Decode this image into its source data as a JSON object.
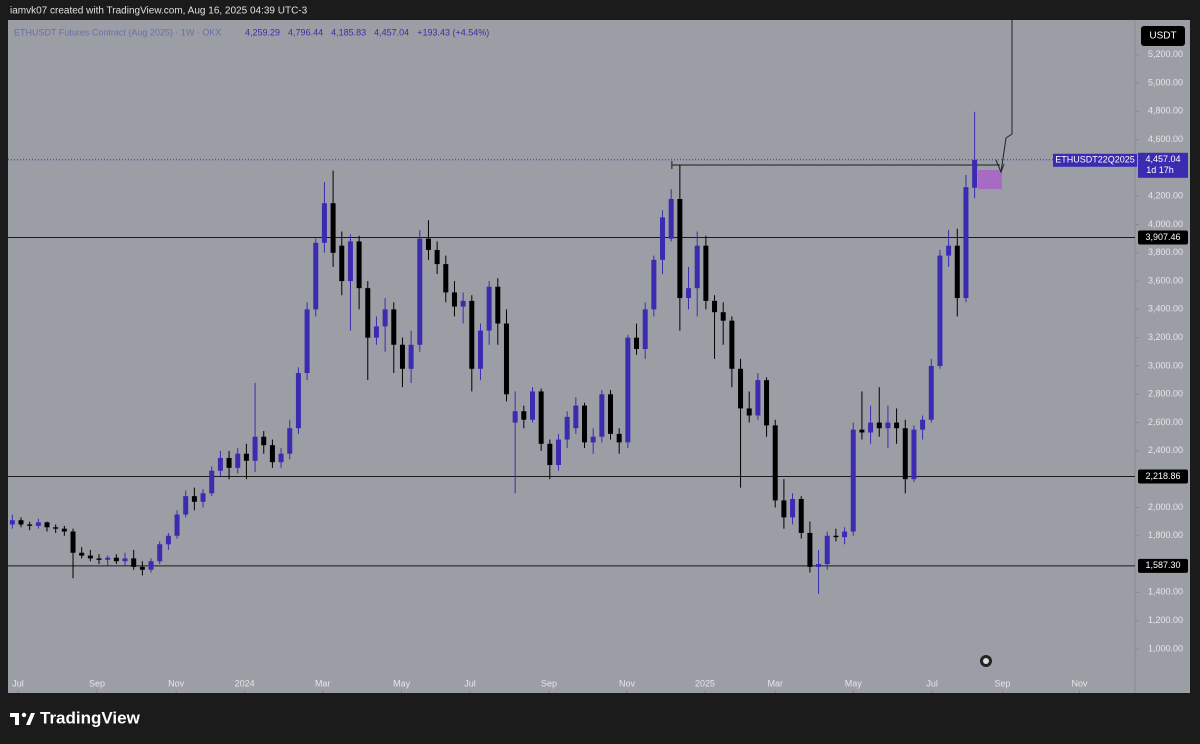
{
  "chart_data": {
    "type": "candlestick",
    "caption": "iamvk07 created with TradingView.com, Aug 16, 2025 04:39 UTC-3",
    "title": "ETHUSDT Futures Contract (Aug 2025) · 1W · OKX",
    "legend_values": [
      "4,259.29",
      "4,796.44",
      "4,185.83",
      "4,457.04",
      "+193.43 (+4.54%)"
    ],
    "currency": "USDT",
    "brand": "TradingView",
    "up_color": "#3a2bb0",
    "down_color": "#000000",
    "candles": [
      [
        1880,
        1950,
        1850,
        1910
      ],
      [
        1910,
        1930,
        1860,
        1880
      ],
      [
        1880,
        1900,
        1840,
        1870
      ],
      [
        1870,
        1920,
        1850,
        1895
      ],
      [
        1895,
        1900,
        1830,
        1860
      ],
      [
        1860,
        1880,
        1820,
        1850
      ],
      [
        1850,
        1870,
        1800,
        1830
      ],
      [
        1830,
        1850,
        1500,
        1680
      ],
      [
        1680,
        1720,
        1640,
        1660
      ],
      [
        1660,
        1700,
        1620,
        1640
      ],
      [
        1640,
        1670,
        1600,
        1630
      ],
      [
        1630,
        1660,
        1590,
        1645
      ],
      [
        1645,
        1670,
        1600,
        1620
      ],
      [
        1620,
        1680,
        1590,
        1640
      ],
      [
        1640,
        1700,
        1560,
        1580
      ],
      [
        1580,
        1620,
        1520,
        1560
      ],
      [
        1560,
        1640,
        1540,
        1620
      ],
      [
        1620,
        1760,
        1600,
        1740
      ],
      [
        1740,
        1820,
        1700,
        1800
      ],
      [
        1800,
        1980,
        1780,
        1950
      ],
      [
        1950,
        2120,
        1930,
        2080
      ],
      [
        2080,
        2140,
        1980,
        2040
      ],
      [
        2040,
        2130,
        2000,
        2100
      ],
      [
        2100,
        2290,
        2080,
        2260
      ],
      [
        2260,
        2400,
        2220,
        2350
      ],
      [
        2350,
        2400,
        2200,
        2280
      ],
      [
        2280,
        2420,
        2240,
        2380
      ],
      [
        2380,
        2450,
        2200,
        2330
      ],
      [
        2330,
        2880,
        2250,
        2500
      ],
      [
        2500,
        2540,
        2380,
        2440
      ],
      [
        2440,
        2480,
        2280,
        2320
      ],
      [
        2320,
        2420,
        2280,
        2380
      ],
      [
        2380,
        2620,
        2340,
        2560
      ],
      [
        2560,
        2990,
        2520,
        2950
      ],
      [
        2950,
        3450,
        2900,
        3400
      ],
      [
        3400,
        3900,
        3350,
        3870
      ],
      [
        3870,
        4300,
        3800,
        4150
      ],
      [
        4150,
        4380,
        3700,
        3800
      ],
      [
        3850,
        3950,
        3500,
        3600
      ],
      [
        3600,
        3930,
        3250,
        3880
      ],
      [
        3880,
        3920,
        3400,
        3550
      ],
      [
        3550,
        3600,
        2900,
        3200
      ],
      [
        3200,
        3350,
        3150,
        3280
      ],
      [
        3280,
        3480,
        3100,
        3400
      ],
      [
        3400,
        3450,
        2950,
        3150
      ],
      [
        3150,
        3200,
        2850,
        2980
      ],
      [
        2980,
        3250,
        2880,
        3150
      ],
      [
        3150,
        3960,
        3100,
        3900
      ],
      [
        3900,
        4030,
        3750,
        3820
      ],
      [
        3820,
        3880,
        3650,
        3720
      ],
      [
        3720,
        3780,
        3450,
        3520
      ],
      [
        3520,
        3600,
        3350,
        3420
      ],
      [
        3420,
        3520,
        3300,
        3460
      ],
      [
        3460,
        3500,
        2820,
        2980
      ],
      [
        2980,
        3300,
        2900,
        3250
      ],
      [
        3250,
        3600,
        3150,
        3560
      ],
      [
        3560,
        3620,
        3150,
        3300
      ],
      [
        3300,
        3400,
        2750,
        2800
      ],
      [
        2600,
        2820,
        2100,
        2680
      ],
      [
        2680,
        2720,
        2560,
        2620
      ],
      [
        2620,
        2850,
        2600,
        2820
      ],
      [
        2820,
        2840,
        2400,
        2450
      ],
      [
        2450,
        2480,
        2200,
        2300
      ],
      [
        2300,
        2520,
        2260,
        2480
      ],
      [
        2480,
        2680,
        2420,
        2640
      ],
      [
        2560,
        2780,
        2520,
        2720
      ],
      [
        2720,
        2740,
        2420,
        2460
      ],
      [
        2460,
        2560,
        2380,
        2500
      ],
      [
        2500,
        2830,
        2460,
        2800
      ],
      [
        2800,
        2830,
        2480,
        2520
      ],
      [
        2520,
        2560,
        2380,
        2460
      ],
      [
        2460,
        3220,
        2420,
        3200
      ],
      [
        3200,
        3300,
        3080,
        3120
      ],
      [
        3120,
        3450,
        3050,
        3400
      ],
      [
        3400,
        3780,
        3350,
        3750
      ],
      [
        3750,
        4100,
        3650,
        4050
      ],
      [
        3900,
        4250,
        3880,
        4180
      ],
      [
        4180,
        4420,
        3250,
        3480
      ],
      [
        3480,
        3700,
        3400,
        3550
      ],
      [
        3550,
        3950,
        3350,
        3850
      ],
      [
        3850,
        3920,
        3400,
        3460
      ],
      [
        3460,
        3500,
        3050,
        3380
      ],
      [
        3380,
        3450,
        3150,
        3320
      ],
      [
        3320,
        3350,
        2850,
        2980
      ],
      [
        2980,
        3050,
        2140,
        2700
      ],
      [
        2700,
        2820,
        2600,
        2650
      ],
      [
        2650,
        2950,
        2620,
        2900
      ],
      [
        2900,
        2920,
        2500,
        2580
      ],
      [
        2580,
        2620,
        2000,
        2050
      ],
      [
        2050,
        2200,
        1850,
        1930
      ],
      [
        1930,
        2100,
        1880,
        2060
      ],
      [
        2060,
        2080,
        1780,
        1820
      ],
      [
        1820,
        1900,
        1540,
        1580
      ],
      [
        1580,
        1700,
        1390,
        1600
      ],
      [
        1600,
        1830,
        1560,
        1800
      ],
      [
        1800,
        1850,
        1760,
        1790
      ],
      [
        1790,
        1860,
        1740,
        1830
      ],
      [
        1830,
        2600,
        1800,
        2550
      ],
      [
        2550,
        2820,
        2480,
        2530
      ],
      [
        2530,
        2720,
        2450,
        2600
      ],
      [
        2600,
        2850,
        2500,
        2560
      ],
      [
        2560,
        2720,
        2420,
        2600
      ],
      [
        2600,
        2700,
        2450,
        2560
      ],
      [
        2560,
        2620,
        2100,
        2200
      ],
      [
        2200,
        2580,
        2180,
        2550
      ],
      [
        2550,
        2650,
        2480,
        2620
      ],
      [
        2620,
        3050,
        2600,
        3000
      ],
      [
        3000,
        3820,
        2980,
        3780
      ],
      [
        3780,
        3960,
        3700,
        3850
      ],
      [
        3850,
        3970,
        3350,
        3480
      ],
      [
        3480,
        4350,
        3450,
        4263.61
      ],
      [
        4259.29,
        4796.44,
        4185.83,
        4457.04
      ]
    ],
    "xlim": [
      -0.5,
      129.5
    ],
    "xticks": [
      {
        "value": 0.65,
        "label": "Jul"
      },
      {
        "value": 9.77,
        "label": "Sep"
      },
      {
        "value": 18.9,
        "label": "Nov"
      },
      {
        "value": 26.8,
        "label": "2024"
      },
      {
        "value": 35.8,
        "label": "Mar"
      },
      {
        "value": 44.9,
        "label": "May"
      },
      {
        "value": 52.8,
        "label": "Jul"
      },
      {
        "value": 61.9,
        "label": "Sep"
      },
      {
        "value": 70.9,
        "label": "Nov"
      },
      {
        "value": 79.9,
        "label": "2025"
      },
      {
        "value": 88.0,
        "label": "Mar"
      },
      {
        "value": 97.0,
        "label": "May"
      },
      {
        "value": 106.1,
        "label": "Jul"
      },
      {
        "value": 114.2,
        "label": "Sep"
      },
      {
        "value": 123.1,
        "label": "Nov"
      }
    ],
    "ylim": [
      710,
      5445
    ],
    "yticks": [
      {
        "value": 1000,
        "label": "1,000.00"
      },
      {
        "value": 1200,
        "label": "1,200.00"
      },
      {
        "value": 1400,
        "label": "1,400.00"
      },
      {
        "value": 1800,
        "label": "1,800.00"
      },
      {
        "value": 2000,
        "label": "2,000.00"
      },
      {
        "value": 2400,
        "label": "2,400.00"
      },
      {
        "value": 2600,
        "label": "2,600.00"
      },
      {
        "value": 2800,
        "label": "2,800.00"
      },
      {
        "value": 3000,
        "label": "3,000.00"
      },
      {
        "value": 3200,
        "label": "3,200.00"
      },
      {
        "value": 3400,
        "label": "3,400.00"
      },
      {
        "value": 3600,
        "label": "3,600.00"
      },
      {
        "value": 3800,
        "label": "3,800.00"
      },
      {
        "value": 4000,
        "label": "4,000.00"
      },
      {
        "value": 4200,
        "label": "4,200.00"
      },
      {
        "value": 4600,
        "label": "4,600.00"
      },
      {
        "value": 4800,
        "label": "4,800.00"
      },
      {
        "value": 5000,
        "label": "5,000.00"
      },
      {
        "value": 5200,
        "label": "5,200.00"
      }
    ],
    "levels": {
      "values": [
        3907.46,
        2218.86,
        1587.3
      ],
      "value_labels": [
        "3,907.46",
        "2,218.86",
        "1,587.30"
      ]
    },
    "last": {
      "symbol": "ETHUSDT22Q2025",
      "value": 4457.04,
      "value_label": "4,457.04",
      "countdown": "1d 17h"
    }
  }
}
